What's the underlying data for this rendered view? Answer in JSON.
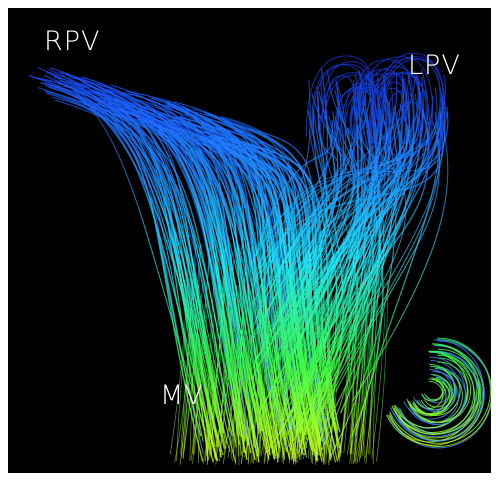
{
  "labels": {
    "rpv": "RPV",
    "lpv": "LPV",
    "mv": "MV"
  }
}
